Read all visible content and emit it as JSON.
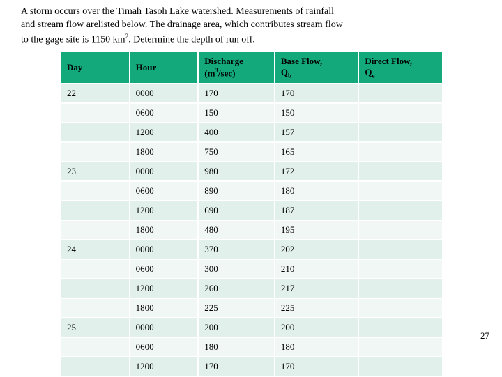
{
  "problem": {
    "line1": "A storm occurs over the Timah Tasoh Lake watershed. Measurements of rainfall",
    "line2": "and stream flow arelisted below. The drainage area, which contributes stream flow",
    "line3_a": "to the gage site is 1150 km",
    "line3_b": ". Determine the depth of run off."
  },
  "columns": {
    "day": "Day",
    "hour": "Hour",
    "discharge_a": "Discharge",
    "discharge_b": "(m",
    "discharge_c": "/sec)",
    "baseflow_a": "Base Flow,",
    "baseflow_b": "Q",
    "baseflow_sub": "b",
    "directflow_a": "Direct Flow,",
    "directflow_b": "Q",
    "directflow_sub": "e"
  },
  "rows": [
    {
      "day": "22",
      "hour": "0000",
      "discharge": "170",
      "base": "170",
      "direct": ""
    },
    {
      "day": "",
      "hour": "0600",
      "discharge": "150",
      "base": "150",
      "direct": ""
    },
    {
      "day": "",
      "hour": "1200",
      "discharge": "400",
      "base": "157",
      "direct": ""
    },
    {
      "day": "",
      "hour": "1800",
      "discharge": "750",
      "base": "165",
      "direct": ""
    },
    {
      "day": "23",
      "hour": "0000",
      "discharge": "980",
      "base": "172",
      "direct": ""
    },
    {
      "day": "",
      "hour": "0600",
      "discharge": "890",
      "base": "180",
      "direct": ""
    },
    {
      "day": "",
      "hour": "1200",
      "discharge": "690",
      "base": "187",
      "direct": ""
    },
    {
      "day": "",
      "hour": "1800",
      "discharge": "480",
      "base": "195",
      "direct": ""
    },
    {
      "day": "24",
      "hour": "0000",
      "discharge": "370",
      "base": "202",
      "direct": ""
    },
    {
      "day": "",
      "hour": "0600",
      "discharge": "300",
      "base": "210",
      "direct": ""
    },
    {
      "day": "",
      "hour": "1200",
      "discharge": "260",
      "base": "217",
      "direct": ""
    },
    {
      "day": "",
      "hour": "1800",
      "discharge": "225",
      "base": "225",
      "direct": ""
    },
    {
      "day": "25",
      "hour": "0000",
      "discharge": "200",
      "base": "200",
      "direct": ""
    },
    {
      "day": "",
      "hour": "0600",
      "discharge": "180",
      "base": "180",
      "direct": ""
    },
    {
      "day": "",
      "hour": "1200",
      "discharge": "170",
      "base": "170",
      "direct": ""
    }
  ],
  "page_number": "27",
  "style": {
    "header_bg": "#13a97b",
    "band_a": "#e1f0ea",
    "band_b": "#f0f7f4",
    "col_widths": [
      "90px",
      "90px",
      "100px",
      "110px",
      "110px"
    ]
  }
}
